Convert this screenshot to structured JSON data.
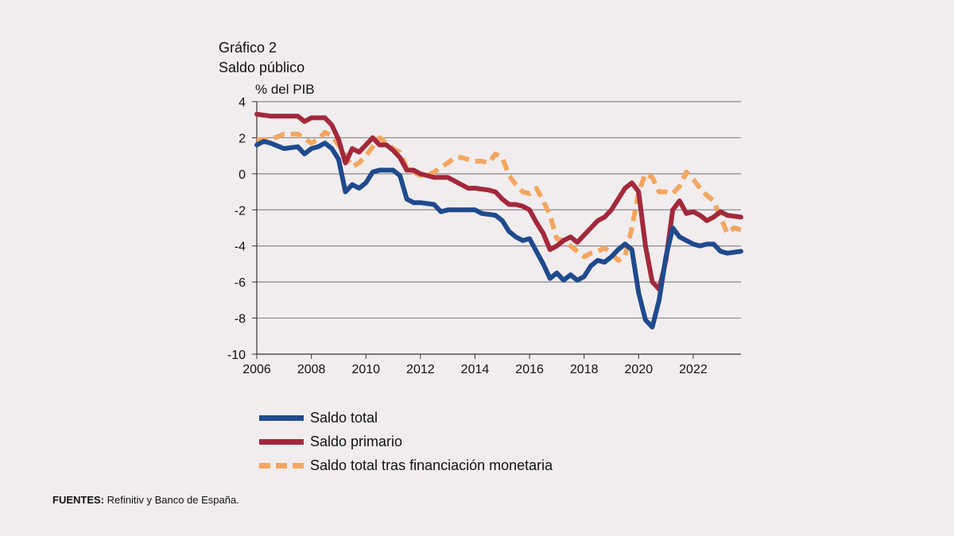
{
  "header": {
    "chart_number": "Gráfico 2",
    "chart_title": "Saldo público",
    "unit": "% del PIB"
  },
  "footer": {
    "source_label": "FUENTES:",
    "source_text": "Refinitiv y Banco de España."
  },
  "colors": {
    "saldo_total": "#1f4a8e",
    "saldo_primario": "#a3283b",
    "saldo_monetaria": "#f4a660",
    "grid": "#888888"
  },
  "chart_data": {
    "type": "line",
    "title": "Saldo público",
    "ylabel": "% del PIB",
    "xlim": [
      2006,
      2023.75
    ],
    "ylim": [
      -10,
      4
    ],
    "yticks": [
      4,
      2,
      0,
      -2,
      -4,
      -6,
      -8,
      -10
    ],
    "xticks": [
      2006,
      2008,
      2010,
      2012,
      2014,
      2016,
      2018,
      2020,
      2022
    ],
    "grid": true,
    "legend": "bottom",
    "series": [
      {
        "name": "Saldo total",
        "x": [
          2006.0,
          2006.25,
          2006.5,
          2007.0,
          2007.5,
          2007.75,
          2008.0,
          2008.25,
          2008.5,
          2008.75,
          2009.0,
          2009.25,
          2009.5,
          2009.75,
          2010.0,
          2010.25,
          2010.5,
          2010.75,
          2011.0,
          2011.25,
          2011.5,
          2011.75,
          2012.0,
          2012.5,
          2012.75,
          2013.0,
          2013.5,
          2014.0,
          2014.25,
          2014.75,
          2015.0,
          2015.25,
          2015.5,
          2015.75,
          2016.0,
          2016.25,
          2016.5,
          2016.75,
          2017.0,
          2017.25,
          2017.5,
          2017.75,
          2018.0,
          2018.25,
          2018.5,
          2018.75,
          2019.0,
          2019.25,
          2019.5,
          2019.75,
          2020.0,
          2020.25,
          2020.5,
          2020.75,
          2021.0,
          2021.25,
          2021.5,
          2021.75,
          2022.0,
          2022.25,
          2022.5,
          2022.75,
          2023.0,
          2023.25,
          2023.75
        ],
        "y": [
          1.6,
          1.8,
          1.7,
          1.4,
          1.5,
          1.1,
          1.4,
          1.5,
          1.7,
          1.4,
          0.8,
          -1.0,
          -0.6,
          -0.8,
          -0.5,
          0.1,
          0.2,
          0.2,
          0.2,
          -0.1,
          -1.4,
          -1.6,
          -1.6,
          -1.7,
          -2.1,
          -2.0,
          -2.0,
          -2.0,
          -2.2,
          -2.3,
          -2.6,
          -3.2,
          -3.5,
          -3.7,
          -3.6,
          -4.3,
          -5.0,
          -5.8,
          -5.5,
          -5.9,
          -5.6,
          -5.9,
          -5.7,
          -5.1,
          -4.8,
          -4.9,
          -4.6,
          -4.2,
          -3.9,
          -4.2,
          -6.6,
          -8.1,
          -8.5,
          -7.0,
          -4.6,
          -3.0,
          -3.5,
          -3.7,
          -3.9,
          -4.0,
          -3.9,
          -3.9,
          -4.3,
          -4.4,
          -4.3
        ]
      },
      {
        "name": "Saldo primario",
        "x": [
          2006.0,
          2006.5,
          2007.0,
          2007.5,
          2007.75,
          2008.0,
          2008.5,
          2008.75,
          2009.0,
          2009.25,
          2009.5,
          2009.75,
          2010.0,
          2010.25,
          2010.5,
          2010.75,
          2011.0,
          2011.25,
          2011.5,
          2011.75,
          2012.0,
          2012.5,
          2012.75,
          2013.0,
          2013.5,
          2013.75,
          2014.0,
          2014.5,
          2014.75,
          2015.0,
          2015.25,
          2015.5,
          2015.75,
          2016.0,
          2016.25,
          2016.5,
          2016.75,
          2017.0,
          2017.25,
          2017.5,
          2017.75,
          2018.0,
          2018.25,
          2018.5,
          2018.75,
          2019.0,
          2019.25,
          2019.5,
          2019.75,
          2020.0,
          2020.25,
          2020.5,
          2020.75,
          2021.0,
          2021.25,
          2021.5,
          2021.75,
          2022.0,
          2022.25,
          2022.5,
          2022.75,
          2023.0,
          2023.25,
          2023.75
        ],
        "y": [
          3.3,
          3.2,
          3.2,
          3.2,
          2.9,
          3.1,
          3.1,
          2.7,
          1.9,
          0.6,
          1.4,
          1.2,
          1.6,
          2.0,
          1.6,
          1.6,
          1.3,
          0.9,
          0.2,
          0.2,
          0.0,
          -0.2,
          -0.2,
          -0.2,
          -0.6,
          -0.8,
          -0.8,
          -0.9,
          -1.0,
          -1.4,
          -1.7,
          -1.7,
          -1.8,
          -2.0,
          -2.7,
          -3.3,
          -4.2,
          -4.0,
          -3.7,
          -3.5,
          -3.8,
          -3.4,
          -3.0,
          -2.6,
          -2.4,
          -2.0,
          -1.4,
          -0.8,
          -0.5,
          -1.0,
          -4.0,
          -6.0,
          -6.4,
          -4.8,
          -2.0,
          -1.5,
          -2.2,
          -2.1,
          -2.3,
          -2.6,
          -2.4,
          -2.1,
          -2.3,
          -2.4
        ]
      },
      {
        "name": "Saldo total tras financiación monetaria",
        "x": [
          2006.0,
          2006.25,
          2006.5,
          2007.0,
          2007.5,
          2008.0,
          2008.25,
          2008.5,
          2008.75,
          2009.0,
          2009.25,
          2009.5,
          2009.75,
          2010.0,
          2010.25,
          2010.5,
          2010.75,
          2011.0,
          2011.25,
          2011.5,
          2011.75,
          2012.0,
          2012.25,
          2012.5,
          2013.0,
          2013.25,
          2013.5,
          2014.0,
          2014.25,
          2014.5,
          2014.75,
          2015.0,
          2015.25,
          2015.5,
          2015.75,
          2016.0,
          2016.25,
          2016.5,
          2016.75,
          2017.0,
          2017.25,
          2017.5,
          2017.75,
          2018.0,
          2018.25,
          2018.5,
          2018.75,
          2019.0,
          2019.25,
          2019.5,
          2019.75,
          2020.0,
          2020.25,
          2020.5,
          2020.75,
          2021.0,
          2021.25,
          2021.5,
          2021.75,
          2022.0,
          2022.25,
          2022.5,
          2022.75,
          2023.0,
          2023.25,
          2023.5,
          2023.75
        ],
        "y": [
          1.9,
          1.9,
          1.9,
          2.2,
          2.2,
          1.7,
          1.9,
          2.3,
          2.1,
          1.6,
          1.0,
          0.4,
          0.6,
          1.0,
          1.5,
          2.0,
          1.7,
          1.4,
          1.2,
          0.3,
          0.1,
          -0.1,
          -0.1,
          0.1,
          0.6,
          0.9,
          0.9,
          0.7,
          0.7,
          0.6,
          1.1,
          0.9,
          -0.1,
          -0.6,
          -1.0,
          -1.1,
          -0.8,
          -1.5,
          -2.3,
          -3.6,
          -3.7,
          -4.0,
          -4.3,
          -4.6,
          -4.4,
          -4.3,
          -4.1,
          -4.4,
          -4.8,
          -4.6,
          -3.0,
          -1.0,
          0.0,
          -0.2,
          -1.0,
          -1.0,
          -1.1,
          -0.7,
          0.1,
          -0.3,
          -0.8,
          -1.2,
          -1.5,
          -2.4,
          -3.3,
          -3.0,
          -3.1
        ]
      }
    ]
  }
}
